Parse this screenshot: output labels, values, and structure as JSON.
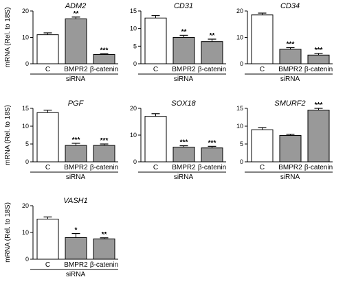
{
  "ylabel": "mRNA (Rel. to 18S)",
  "xlabel": "siRNA",
  "chart_data": [
    {
      "type": "bar",
      "title": "ADM2",
      "categories": [
        "C",
        "BMPR2",
        "β-catenin"
      ],
      "values": [
        11,
        17,
        3.5
      ],
      "errors": [
        0.7,
        0.7,
        0.3
      ],
      "significance": [
        "",
        "**",
        "***"
      ],
      "ylim": [
        0,
        20
      ],
      "yticks": [
        0,
        10,
        20
      ],
      "colors": [
        "#ffffff",
        "#999999",
        "#999999"
      ]
    },
    {
      "type": "bar",
      "title": "CD31",
      "categories": [
        "C",
        "BMPR2",
        "β-catenin"
      ],
      "values": [
        13,
        7.5,
        6.3
      ],
      "errors": [
        0.7,
        0.6,
        0.7
      ],
      "significance": [
        "",
        "**",
        "**"
      ],
      "ylim": [
        0,
        15
      ],
      "yticks": [
        0,
        5,
        10,
        15
      ],
      "colors": [
        "#ffffff",
        "#999999",
        "#999999"
      ]
    },
    {
      "type": "bar",
      "title": "CD34",
      "categories": [
        "C",
        "BMPR2",
        "β-catenin"
      ],
      "values": [
        18.5,
        5.5,
        3.3
      ],
      "errors": [
        0.7,
        0.6,
        0.6
      ],
      "significance": [
        "",
        "***",
        "***"
      ],
      "ylim": [
        0,
        20
      ],
      "yticks": [
        0,
        10,
        20
      ],
      "colors": [
        "#ffffff",
        "#999999",
        "#999999"
      ]
    },
    {
      "type": "bar",
      "title": "PGF",
      "categories": [
        "C",
        "BMPR2",
        "β-catenin"
      ],
      "values": [
        13.8,
        4.6,
        4.6
      ],
      "errors": [
        0.7,
        0.6,
        0.4
      ],
      "significance": [
        "",
        "***",
        "***"
      ],
      "ylim": [
        0,
        15
      ],
      "yticks": [
        0,
        5,
        10,
        15
      ],
      "colors": [
        "#ffffff",
        "#999999",
        "#999999"
      ]
    },
    {
      "type": "bar",
      "title": "SOX18",
      "categories": [
        "C",
        "BMPR2",
        "β-catenin"
      ],
      "values": [
        17,
        5.5,
        5.2
      ],
      "errors": [
        1,
        0.5,
        0.6
      ],
      "significance": [
        "",
        "***",
        "***"
      ],
      "ylim": [
        0,
        20
      ],
      "yticks": [
        0,
        10,
        20
      ],
      "colors": [
        "#ffffff",
        "#999999",
        "#999999"
      ]
    },
    {
      "type": "bar",
      "title": "SMURF2",
      "categories": [
        "C",
        "BMPR2",
        "β-catenin"
      ],
      "values": [
        9,
        7.4,
        14.5
      ],
      "errors": [
        0.6,
        0.3,
        0.5
      ],
      "significance": [
        "",
        "",
        "***"
      ],
      "ylim": [
        0,
        15
      ],
      "yticks": [
        0,
        5,
        10,
        15
      ],
      "colors": [
        "#ffffff",
        "#999999",
        "#999999"
      ]
    },
    {
      "type": "bar",
      "title": "VASH1",
      "categories": [
        "C",
        "BMPR2",
        "β-catenin"
      ],
      "values": [
        15,
        8.1,
        7.6
      ],
      "errors": [
        0.8,
        1.5,
        0.4
      ],
      "significance": [
        "",
        "*",
        "**"
      ],
      "ylim": [
        0,
        20
      ],
      "yticks": [
        0,
        10,
        20
      ],
      "colors": [
        "#ffffff",
        "#999999",
        "#999999"
      ]
    }
  ]
}
